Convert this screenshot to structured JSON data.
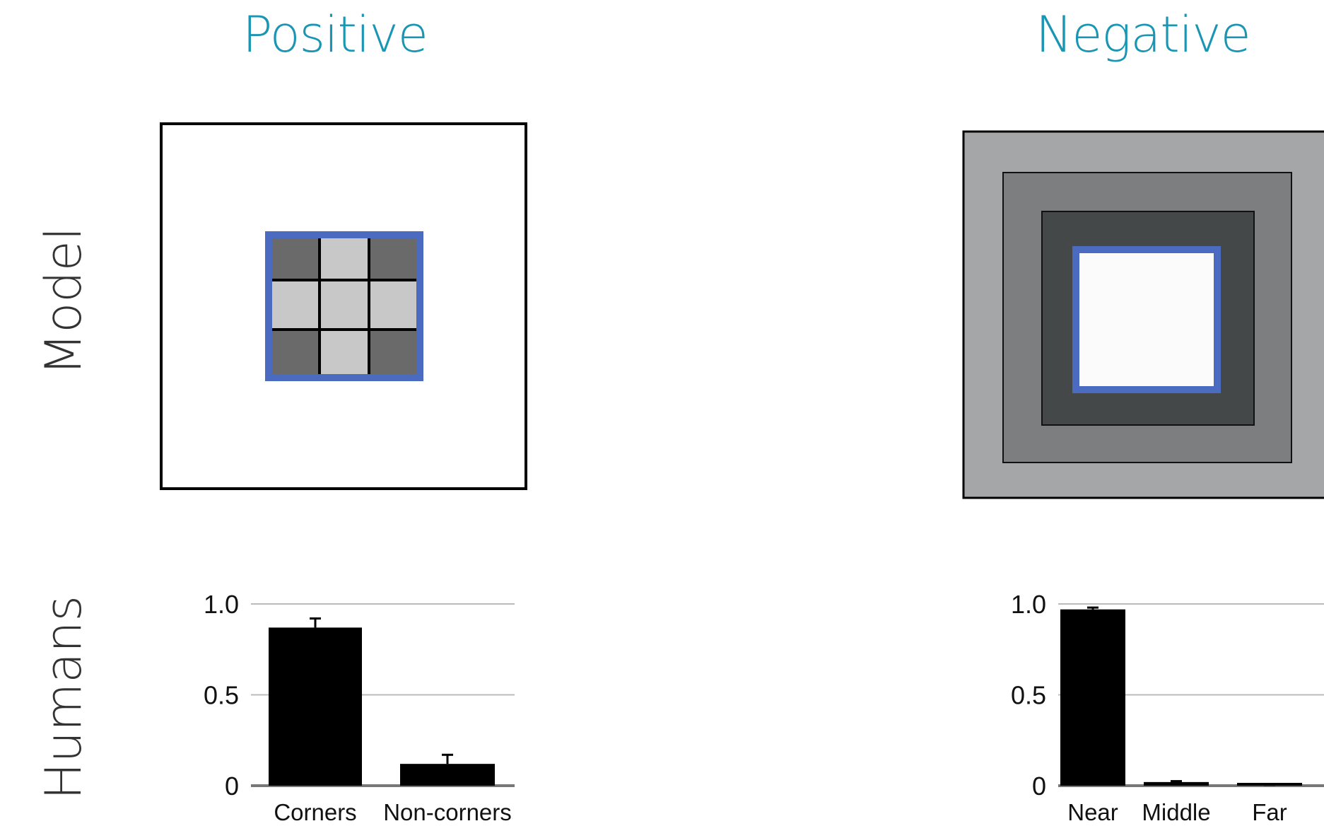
{
  "titles": {
    "positive": "Positive",
    "negative": "Negative"
  },
  "rows": {
    "model": "Model",
    "humans": "Humans"
  },
  "colors": {
    "title": "#1a96b4",
    "highlight": "#4a6bbf",
    "bar": "#000000"
  },
  "chart_data": [
    {
      "type": "bar",
      "categories": [
        "Corners",
        "Non-corners"
      ],
      "values": [
        0.87,
        0.12
      ],
      "error": [
        0.05,
        0.05
      ],
      "ylim": [
        0,
        1.0
      ],
      "yticks": [
        "0",
        "0.5",
        "1.0"
      ],
      "grid": true
    },
    {
      "type": "bar",
      "categories": [
        "Near",
        "Middle",
        "Far"
      ],
      "values": [
        0.97,
        0.02,
        0.0
      ],
      "error": [
        0.01,
        0.005,
        0.005
      ],
      "ylim": [
        0,
        1.0
      ],
      "yticks": [
        "0",
        "0.5",
        "1.0"
      ],
      "grid": true
    }
  ]
}
